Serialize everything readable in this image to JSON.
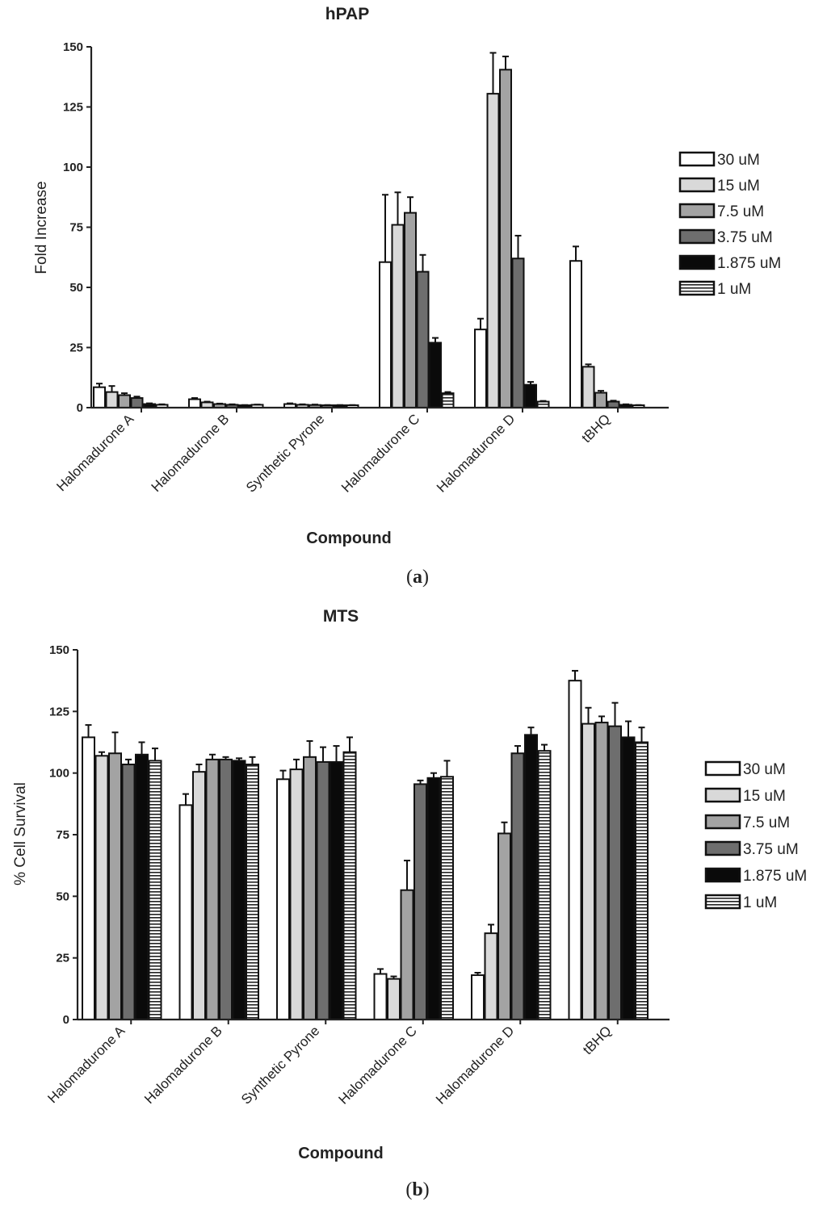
{
  "chart_data": [
    {
      "type": "bar",
      "title": "hPAP",
      "xlabel": "Compound",
      "ylabel": "Fold  Increase",
      "panel_label": "a",
      "ylim": [
        0,
        150
      ],
      "yticks": [
        0,
        25,
        50,
        75,
        100,
        125,
        150
      ],
      "categories": [
        "Halomadurone A",
        "Halomadurone B",
        "Synthetic Pyrone",
        "Halomadurone C",
        "Halomadurone D",
        "tBHQ"
      ],
      "series": [
        {
          "name": "30 uM",
          "values": [
            8.5,
            3.5,
            1.5,
            60.5,
            32.5,
            61
          ],
          "errors": [
            1.5,
            0.5,
            0.3,
            28,
            4.5,
            6
          ]
        },
        {
          "name": "15 uM",
          "values": [
            6.5,
            2.2,
            1.2,
            76,
            130.5,
            17
          ],
          "errors": [
            2.5,
            0.3,
            0.2,
            13.5,
            17,
            1
          ]
        },
        {
          "name": "7.5 uM",
          "values": [
            5.2,
            1.5,
            1.1,
            81,
            140.5,
            6.2
          ],
          "errors": [
            0.8,
            0.2,
            0.2,
            6.5,
            5.5,
            0.8
          ]
        },
        {
          "name": "3.75 uM",
          "values": [
            4,
            1.2,
            1,
            56.5,
            62,
            2.5
          ],
          "errors": [
            0.6,
            0.2,
            0.1,
            7,
            9.5,
            0.4
          ]
        },
        {
          "name": "1.875 uM",
          "values": [
            1.5,
            1,
            1,
            27,
            9.5,
            1.2
          ],
          "errors": [
            0.3,
            0.1,
            0.1,
            2,
            1.2,
            0.2
          ]
        },
        {
          "name": "1 uM",
          "values": [
            1.2,
            1.2,
            1,
            6,
            2.5,
            1
          ],
          "errors": [
            0.2,
            0.1,
            0.1,
            0.5,
            0.3,
            0.1
          ]
        }
      ]
    },
    {
      "type": "bar",
      "title": "MTS",
      "xlabel": "Compound",
      "ylabel": "%  Cell  Survival",
      "panel_label": "b",
      "ylim": [
        0,
        150
      ],
      "yticks": [
        0,
        25,
        50,
        75,
        100,
        125,
        150
      ],
      "categories": [
        "Halomadurone A",
        "Halomadurone B",
        "Synthetic Pyrone",
        "Halomadurone C",
        "Halomadurone D",
        "tBHQ"
      ],
      "series": [
        {
          "name": "30 uM",
          "values": [
            114.5,
            87,
            97.5,
            18.5,
            18,
            137.5
          ],
          "errors": [
            5,
            4.5,
            3.5,
            2,
            1,
            4
          ]
        },
        {
          "name": "15 uM",
          "values": [
            107,
            100.5,
            101.5,
            16.5,
            35,
            120
          ],
          "errors": [
            1.5,
            3,
            4,
            1,
            3.5,
            6.5
          ]
        },
        {
          "name": "7.5 uM",
          "values": [
            108,
            105.5,
            106.5,
            52.5,
            75.5,
            120.5
          ],
          "errors": [
            8.5,
            2,
            6.5,
            12,
            4.5,
            2.5
          ]
        },
        {
          "name": "3.75 uM",
          "values": [
            103.5,
            105.5,
            104.5,
            95.5,
            108,
            119
          ],
          "errors": [
            2,
            1,
            6,
            1.5,
            3,
            9.5
          ]
        },
        {
          "name": "1.875 uM",
          "values": [
            107.5,
            105,
            104.5,
            98,
            115.5,
            114.5
          ],
          "errors": [
            5,
            1,
            6.5,
            2,
            3,
            6.5
          ]
        },
        {
          "name": "1 uM",
          "values": [
            105,
            103.5,
            108.5,
            98.5,
            109,
            112.5
          ],
          "errors": [
            5,
            3,
            6,
            6.5,
            2.5,
            6
          ]
        }
      ]
    }
  ],
  "legend": {
    "fills": [
      "#ffffff",
      "#d9d9d9",
      "#a3a3a3",
      "#6e6e6e",
      "#0a0a0a",
      "striped"
    ]
  }
}
